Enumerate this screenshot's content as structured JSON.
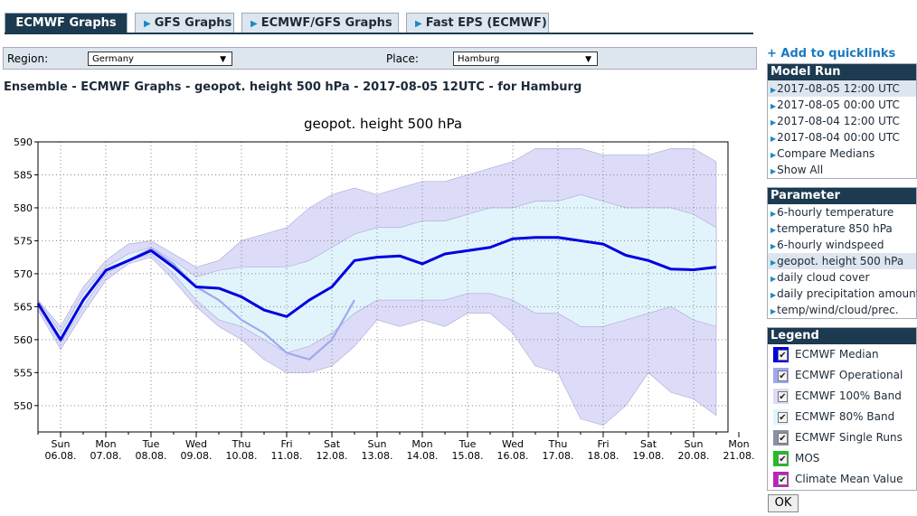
{
  "tabs": [
    "ECMWF Graphs",
    "GFS Graphs",
    "ECMWF/GFS Graphs",
    "Fast EPS (ECMWF)"
  ],
  "filters": {
    "region_label": "Region:",
    "region": "Germany",
    "place_label": "Place:",
    "place": "Hamburg"
  },
  "heading": "Ensemble - ECMWF Graphs - geopot. height 500 hPa - 2017-08-05 12UTC - for Hamburg",
  "sidebar": {
    "quicklink": "+ Add to quicklinks",
    "model_run": {
      "title": "Model Run",
      "items": [
        "2017-08-05 12:00 UTC",
        "2017-08-05 00:00 UTC",
        "2017-08-04 12:00 UTC",
        "2017-08-04 00:00 UTC",
        "Compare Medians",
        "Show All"
      ]
    },
    "parameter": {
      "title": "Parameter",
      "items": [
        "6-hourly temperature",
        "temperature 850 hPa",
        "6-hourly windspeed",
        "geopot. height 500 hPa",
        "daily cloud cover",
        "daily precipitation amount",
        "temp/wind/cloud/prec."
      ]
    },
    "legend_title": "Legend",
    "other_legend": [
      {
        "name": "ECMWF Single Runs",
        "color": "#8890a8"
      },
      {
        "name": "MOS",
        "color": "#20c020"
      },
      {
        "name": "Climate Mean Value",
        "color": "#c020c0"
      }
    ],
    "ok": "OK"
  },
  "chart_data": {
    "type": "line",
    "title": "geopot. height 500 hPa",
    "categories": [
      null,
      "06.08.",
      null,
      "07.08.",
      null,
      "08.08.",
      null,
      "09.08.",
      null,
      "10.08.",
      null,
      "11.08.",
      null,
      "12.08.",
      null,
      "13.08.",
      null,
      "14.08.",
      null,
      "15.08.",
      null,
      "16.08.",
      null,
      "17.08.",
      null,
      "18.08.",
      null,
      "19.08.",
      null,
      "20.08.",
      null,
      "21.08."
    ],
    "weekdays": [
      null,
      "Sun",
      null,
      "Mon",
      null,
      "Tue",
      null,
      "Wed",
      null,
      "Thu",
      null,
      "Fri",
      null,
      "Sat",
      null,
      "Sun",
      null,
      "Mon",
      null,
      "Tue",
      null,
      "Wed",
      null,
      "Thu",
      null,
      "Fri",
      null,
      "Sat",
      null,
      "Sun",
      null,
      "Mon"
    ],
    "ylim": [
      546,
      590
    ],
    "yticks": [
      550,
      555,
      560,
      565,
      570,
      575,
      580,
      585,
      590
    ],
    "grid": true,
    "series": [
      {
        "name": "ECMWF Median",
        "color": "#0000e0",
        "values": [
          565.5,
          560,
          566,
          570.5,
          572,
          573.5,
          571,
          568,
          567.8,
          566.5,
          564.5,
          563.5,
          566,
          568,
          572,
          572.5,
          572.7,
          571.5,
          573,
          573.5,
          574,
          575.3,
          575.5,
          575.5,
          575,
          574.5,
          572.8,
          572,
          570.7,
          570.6,
          571,
          null
        ]
      },
      {
        "name": "ECMWF Operational",
        "color": "#a0a8f0",
        "values": [
          565.5,
          560,
          566,
          570.5,
          572,
          573.8,
          571.5,
          568,
          566,
          563,
          561,
          558,
          557,
          560,
          566,
          null,
          null,
          null,
          null,
          null,
          null,
          null,
          null,
          null,
          null,
          null,
          null,
          null,
          null,
          null,
          null,
          null
        ]
      }
    ],
    "bands": [
      {
        "name": "ECMWF 100% Band",
        "color": "#dcdcf8",
        "upper": [
          566,
          562,
          568,
          572,
          574.5,
          575,
          573,
          571,
          572,
          575,
          576,
          577,
          580,
          582,
          583,
          582,
          583,
          584,
          584,
          585,
          586,
          587,
          589,
          589,
          589,
          588,
          588,
          588,
          589,
          589,
          587,
          null
        ],
        "lower": [
          564.5,
          558.5,
          564,
          569,
          571.5,
          572.5,
          569,
          565,
          562,
          560,
          557,
          555,
          555,
          556,
          559,
          563,
          562,
          563,
          562,
          564,
          564,
          561,
          556,
          555,
          548,
          547,
          550,
          555,
          552,
          551,
          548.5,
          null
        ]
      },
      {
        "name": "ECMWF 80% Band",
        "color": "#e2f4fb",
        "upper": [
          566,
          561,
          567,
          571,
          573,
          574,
          572,
          569.5,
          570.5,
          571,
          571,
          571,
          572,
          574,
          576,
          577,
          577,
          578,
          578,
          579,
          580,
          580,
          581,
          581,
          582,
          581,
          580,
          580,
          580,
          579,
          577,
          null
        ],
        "lower": [
          565,
          559.5,
          565,
          570,
          572,
          573,
          570,
          566,
          563,
          562,
          560,
          558,
          559,
          561,
          564,
          566,
          566,
          566,
          566,
          567,
          567,
          566,
          564,
          564,
          562,
          562,
          563,
          564,
          565,
          563,
          562,
          null
        ]
      }
    ]
  }
}
